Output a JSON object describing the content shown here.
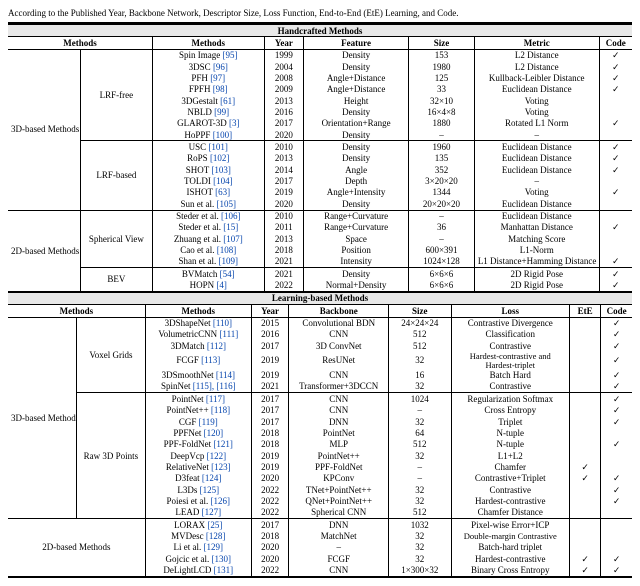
{
  "caption": "According to the Published Year, Backbone Network, Descriptor Size, Loss Function, End-to-End (EtE) Learning, and Code.",
  "section1": "Handcrafted Methods",
  "section2": "Learning-based Methods",
  "hdr": {
    "methods": "Methods",
    "year": "Year",
    "feature": "Feature",
    "size": "Size",
    "metric": "Metric",
    "code": "Code",
    "backbone": "Backbone",
    "loss": "Loss",
    "ete": "EtE"
  },
  "groups": {
    "g3d": "3D-based Methods",
    "g2d": "2D-based Methods",
    "lrf_free": "LRF-free",
    "lrf_based": "LRF-based",
    "spherical": "Spherical View",
    "bev": "BEV",
    "voxel": "Voxel Grids",
    "raw3d": "Raw 3D Points"
  },
  "hc": [
    {
      "m": "Spin Image",
      "r": "[95]",
      "y": "1999",
      "f": "Density",
      "s": "153",
      "met": "L2 Distance",
      "c": "✓"
    },
    {
      "m": "3DSC",
      "r": "[96]",
      "y": "2004",
      "f": "Density",
      "s": "1980",
      "met": "L2 Distance",
      "c": "✓"
    },
    {
      "m": "PFH",
      "r": "[97]",
      "y": "2008",
      "f": "Angle+Distance",
      "s": "125",
      "met": "Kullback-Leibler Distance",
      "c": "✓"
    },
    {
      "m": "FPFH",
      "r": "[98]",
      "y": "2009",
      "f": "Angle+Distance",
      "s": "33",
      "met": "Euclidean Distance",
      "c": "✓"
    },
    {
      "m": "3DGestalt",
      "r": "[61]",
      "y": "2013",
      "f": "Height",
      "s": "32×10",
      "met": "Voting",
      "c": ""
    },
    {
      "m": "NBLD",
      "r": "[99]",
      "y": "2016",
      "f": "Density",
      "s": "16×4×8",
      "met": "Voting",
      "c": ""
    },
    {
      "m": "GLAROT-3D",
      "r": "[3]",
      "y": "2017",
      "f": "Orientation+Range",
      "s": "1880",
      "met": "Rotated L1 Norm",
      "c": "✓"
    },
    {
      "m": "HoPPF",
      "r": "[100]",
      "y": "2020",
      "f": "Density",
      "s": "–",
      "met": "–",
      "c": ""
    },
    {
      "m": "USC",
      "r": "[101]",
      "y": "2010",
      "f": "Density",
      "s": "1960",
      "met": "Euclidean Distance",
      "c": "✓"
    },
    {
      "m": "RoPS",
      "r": "[102]",
      "y": "2013",
      "f": "Density",
      "s": "135",
      "met": "Euclidean Distance",
      "c": "✓"
    },
    {
      "m": "SHOT",
      "r": "[103]",
      "y": "2014",
      "f": "Angle",
      "s": "352",
      "met": "Euclidean Distance",
      "c": "✓"
    },
    {
      "m": "TOLDI",
      "r": "[104]",
      "y": "2017",
      "f": "Depth",
      "s": "3×20×20",
      "met": "–",
      "c": ""
    },
    {
      "m": "ISHOT",
      "r": "[63]",
      "y": "2019",
      "f": "Angle+Intensity",
      "s": "1344",
      "met": "Voting",
      "c": "✓"
    },
    {
      "m": "Sun et al.",
      "r": "[105]",
      "y": "2020",
      "f": "Density",
      "s": "20×20×20",
      "met": "Euclidean Distance",
      "c": ""
    },
    {
      "m": "Steder et al.",
      "r": "[106]",
      "y": "2010",
      "f": "Range+Curvature",
      "s": "–",
      "met": "Euclidean Distance",
      "c": ""
    },
    {
      "m": "Steder et al.",
      "r": "[15]",
      "y": "2011",
      "f": "Range+Curvature",
      "s": "36",
      "met": "Manhattan Distance",
      "c": "✓"
    },
    {
      "m": "Zhuang et al.",
      "r": "[107]",
      "y": "2013",
      "f": "Space",
      "s": "–",
      "met": "Matching Score",
      "c": ""
    },
    {
      "m": "Cao et al.",
      "r": "[108]",
      "y": "2018",
      "f": "Position",
      "s": "600×391",
      "met": "L1-Norm",
      "c": ""
    },
    {
      "m": "Shan et al.",
      "r": "[109]",
      "y": "2021",
      "f": "Intensity",
      "s": "1024×128",
      "met": "L1 Distance+Hamming Distance",
      "c": "✓"
    },
    {
      "m": "BVMatch",
      "r": "[54]",
      "y": "2021",
      "f": "Density",
      "s": "6×6×6",
      "met": "2D Rigid Pose",
      "c": "✓"
    },
    {
      "m": "HOPN",
      "r": "[4]",
      "y": "2022",
      "f": "Normal+Density",
      "s": "6×6×6",
      "met": "2D Rigid Pose",
      "c": "✓"
    }
  ],
  "lb": [
    {
      "m": "3DShapeNet",
      "r": "[110]",
      "y": "2015",
      "b": "Convolutional BDN",
      "s": "24×24×24",
      "l": "Contrastive Divergence",
      "e": "",
      "c": "✓"
    },
    {
      "m": "VolumetricCNN",
      "r": "[111]",
      "y": "2016",
      "b": "CNN",
      "s": "512",
      "l": "Classification",
      "e": "",
      "c": "✓"
    },
    {
      "m": "3DMatch",
      "r": "[112]",
      "y": "2017",
      "b": "3D ConvNet",
      "s": "512",
      "l": "Contrastive",
      "e": "",
      "c": "✓"
    },
    {
      "m": "FCGF",
      "r": "[113]",
      "y": "2019",
      "b": "ResUNet",
      "s": "32",
      "l": "Hardest-contrastive and Hardest-triplet",
      "e": "",
      "c": "✓"
    },
    {
      "m": "3DSmoothNet",
      "r": "[114]",
      "y": "2019",
      "b": "CNN",
      "s": "16",
      "l": "Batch Hard",
      "e": "",
      "c": "✓"
    },
    {
      "m": "SpinNet",
      "r": "[115], [116]",
      "y": "2021",
      "b": "Transformer+3DCCN",
      "s": "32",
      "l": "Contrastive",
      "e": "",
      "c": "✓"
    },
    {
      "m": "PointNet",
      "r": "[117]",
      "y": "2017",
      "b": "CNN",
      "s": "1024",
      "l": "Regularization Softmax",
      "e": "",
      "c": "✓"
    },
    {
      "m": "PointNet++",
      "r": "[118]",
      "y": "2017",
      "b": "CNN",
      "s": "–",
      "l": "Cross Entropy",
      "e": "",
      "c": "✓"
    },
    {
      "m": "CGF",
      "r": "[119]",
      "y": "2017",
      "b": "DNN",
      "s": "32",
      "l": "Triplet",
      "e": "",
      "c": "✓"
    },
    {
      "m": "PPFNet",
      "r": "[120]",
      "y": "2018",
      "b": "PointNet",
      "s": "64",
      "l": "N-tuple",
      "e": "",
      "c": ""
    },
    {
      "m": "PPF-FoldNet",
      "r": "[121]",
      "y": "2018",
      "b": "MLP",
      "s": "512",
      "l": "N-tuple",
      "e": "",
      "c": "✓"
    },
    {
      "m": "DeepVcp",
      "r": "[122]",
      "y": "2019",
      "b": "PointNet++",
      "s": "32",
      "l": "L1+L2",
      "e": "",
      "c": ""
    },
    {
      "m": "RelativeNet",
      "r": "[123]",
      "y": "2019",
      "b": "PPF-FoldNet",
      "s": "–",
      "l": "Chamfer",
      "e": "✓",
      "c": ""
    },
    {
      "m": "D3feat",
      "r": "[124]",
      "y": "2020",
      "b": "KPConv",
      "s": "–",
      "l": "Contrastive+Triplet",
      "e": "✓",
      "c": "✓"
    },
    {
      "m": "L3Ds",
      "r": "[125]",
      "y": "2022",
      "b": "TNet+PointNet++",
      "s": "32",
      "l": "Contrastive",
      "e": "",
      "c": "✓"
    },
    {
      "m": "Poiesi et al.",
      "r": "[126]",
      "y": "2022",
      "b": "QNet+PointNet++",
      "s": "32",
      "l": "Hardest-contrastive",
      "e": "",
      "c": "✓"
    },
    {
      "m": "LEAD",
      "r": "[127]",
      "y": "2022",
      "b": "Spherical CNN",
      "s": "512",
      "l": "Chamfer Distance",
      "e": "",
      "c": ""
    },
    {
      "m": "LORAX",
      "r": "[25]",
      "y": "2017",
      "b": "DNN",
      "s": "1032",
      "l": "Pixel-wise Error+ICP",
      "e": "",
      "c": ""
    },
    {
      "m": "MVDesc",
      "r": "[128]",
      "y": "2018",
      "b": "MatchNet",
      "s": "32",
      "l": "Double-margin Contrastive",
      "e": "",
      "c": ""
    },
    {
      "m": "Li et al.",
      "r": "[129]",
      "y": "2020",
      "b": "–",
      "s": "32",
      "l": "Batch-hard triplet",
      "e": "",
      "c": ""
    },
    {
      "m": "Gojcic et al.",
      "r": "[130]",
      "y": "2020",
      "b": "FCGF",
      "s": "32",
      "l": "Hardest-contrastive",
      "e": "✓",
      "c": "✓"
    },
    {
      "m": "DeLightLCD",
      "r": "[131]",
      "y": "2022",
      "b": "CNN",
      "s": "1×300×32",
      "l": "Binary Cross Entropy",
      "e": "✓",
      "c": "✓"
    }
  ],
  "colors": {
    "bg": "#ffffff",
    "hdr_bg": "#e8e8e8",
    "text": "#000000",
    "link": "#0645ad"
  }
}
